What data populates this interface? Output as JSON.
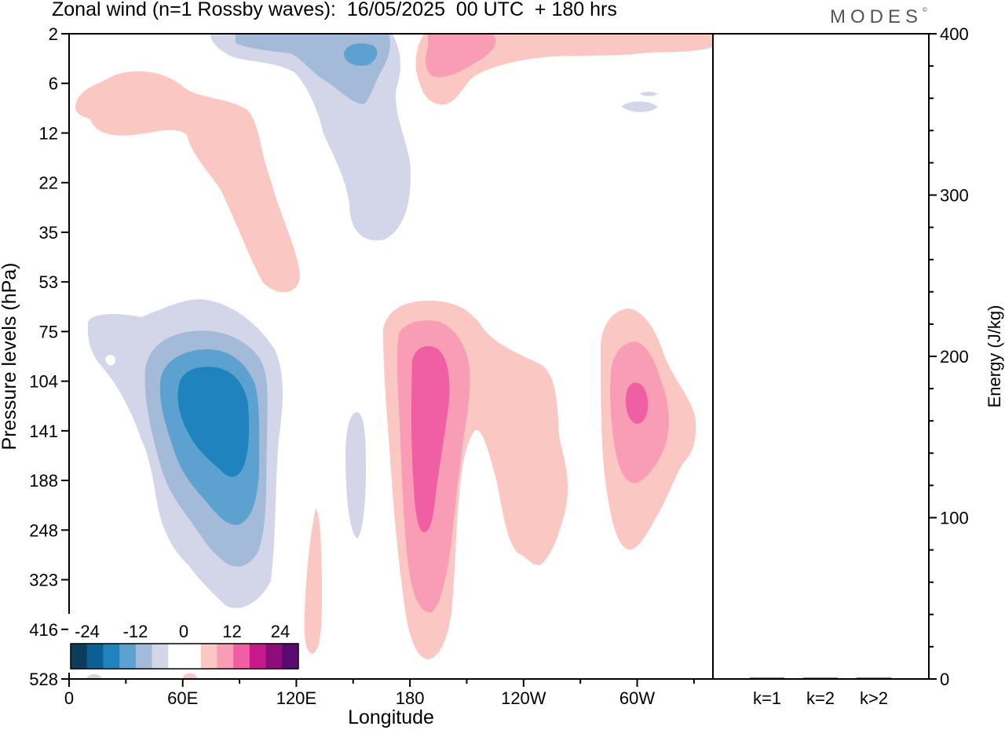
{
  "title": "Zonal wind (n=1 Rossby waves):  16/05/2025  00 UTC  + 180 hrs",
  "logo": "MODES",
  "logo_mark": "©",
  "chart_data": [
    {
      "type": "contour",
      "xlabel": "Longitude",
      "ylabel": "Pressure levels (hPa)",
      "x_ticks": [
        "0",
        "60E",
        "120E",
        "180",
        "120W",
        "60W"
      ],
      "x_range": [
        0,
        340
      ],
      "y_ticks": [
        "2",
        "6",
        "12",
        "22",
        "35",
        "53",
        "75",
        "104",
        "141",
        "188",
        "248",
        "323",
        "416",
        "528"
      ],
      "y_scale": "index",
      "colorbar": {
        "tick_labels": [
          "-24",
          "-12",
          "0",
          "12",
          "24"
        ],
        "colors": [
          "#0c3d5c",
          "#0a5f94",
          "#1f84be",
          "#5ca1cf",
          "#a3bad9",
          "#d3d5e8",
          "#ffffff",
          "#ffffff",
          "#fbc7c3",
          "#f99cb5",
          "#f05fa3",
          "#c7198c",
          "#8e0d7b",
          "#560a72"
        ]
      },
      "features": [
        {
          "name": "negative-core-upper",
          "lon_center": 155,
          "level": "2",
          "value": -12
        },
        {
          "name": "positive-core-upper",
          "lon_center": 200,
          "level": "3",
          "value": 10
        },
        {
          "name": "negative-core-lower",
          "lon_center": 80,
          "level": "130",
          "value": -20
        },
        {
          "name": "positive-core-mid",
          "lon_center": 190,
          "level": "150",
          "value": 18
        },
        {
          "name": "positive-core-east",
          "lon_center": 300,
          "level": "120",
          "value": 16
        }
      ]
    },
    {
      "type": "bar",
      "ylabel": "Energy (J/kg)",
      "categories": [
        "k=1",
        "k=2",
        "k>2"
      ],
      "values": [
        0.6,
        0.2,
        0.3
      ],
      "ylim": [
        0,
        400
      ],
      "y_ticks": [
        0,
        100,
        200,
        300,
        400
      ]
    }
  ]
}
